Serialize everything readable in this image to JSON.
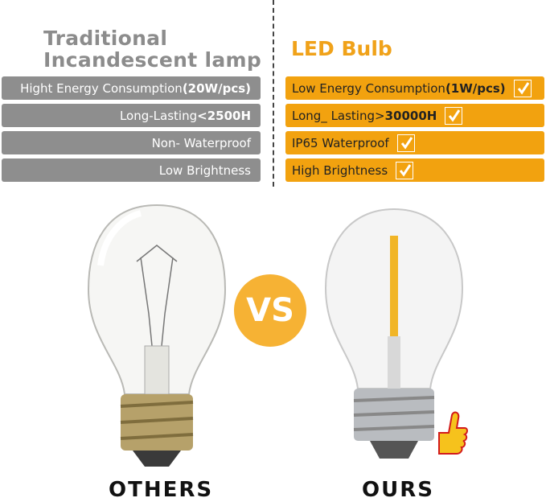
{
  "left": {
    "title_line1": "Traditional",
    "title_line2": "Incandescent lamp",
    "rows": [
      {
        "text": "Hight Energy Consumption",
        "bold": "(20W/pcs)"
      },
      {
        "text": "Long-Lasting",
        "bold": "<2500H"
      },
      {
        "text": "Non- Waterproof",
        "bold": ""
      },
      {
        "text": "Low Brightness",
        "bold": ""
      }
    ],
    "label": "OTHERS"
  },
  "right": {
    "title": "LED Bulb",
    "rows": [
      {
        "text": "Low Energy Consumption",
        "bold": "(1W/pcs)"
      },
      {
        "text": "Long_ Lasting> ",
        "bold": "30000H"
      },
      {
        "text": "IP65 Waterproof",
        "bold": ""
      },
      {
        "text": "High Brightness",
        "bold": ""
      }
    ],
    "label": "OURS"
  },
  "vs": "VS",
  "icons": {
    "check": "checkmark-icon",
    "thumb": "thumbs-up-icon"
  },
  "colors": {
    "gray": "#8e8e8e",
    "orange": "#f2a20f",
    "vs": "#f6b234"
  }
}
